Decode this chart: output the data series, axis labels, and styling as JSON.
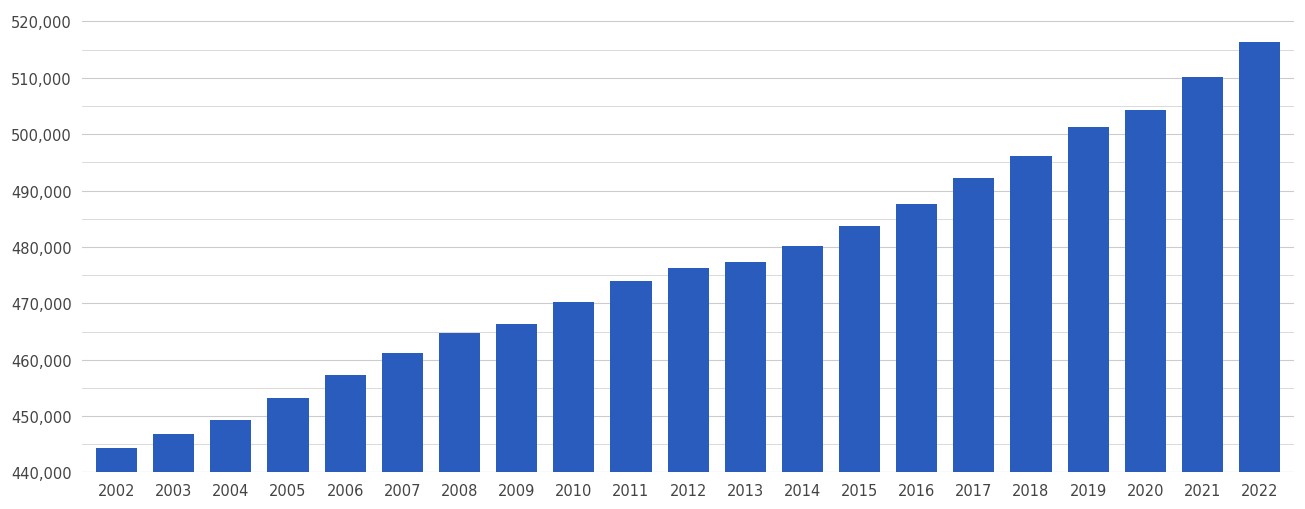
{
  "years": [
    2002,
    2003,
    2004,
    2005,
    2006,
    2007,
    2008,
    2009,
    2010,
    2011,
    2012,
    2013,
    2014,
    2015,
    2016,
    2017,
    2018,
    2019,
    2020,
    2021,
    2022
  ],
  "values": [
    444300,
    446900,
    449300,
    453200,
    457200,
    461200,
    464800,
    466400,
    470200,
    474000,
    476200,
    477300,
    480100,
    483700,
    487700,
    492300,
    496200,
    501300,
    504200,
    510200,
    516300
  ],
  "bar_color": "#2a5cbe",
  "background_color": "#ffffff",
  "grid_color": "#cccccc",
  "ylim_min": 440000,
  "ylim_max": 522000,
  "ytick_major_step": 10000,
  "ytick_minor_step": 5000
}
